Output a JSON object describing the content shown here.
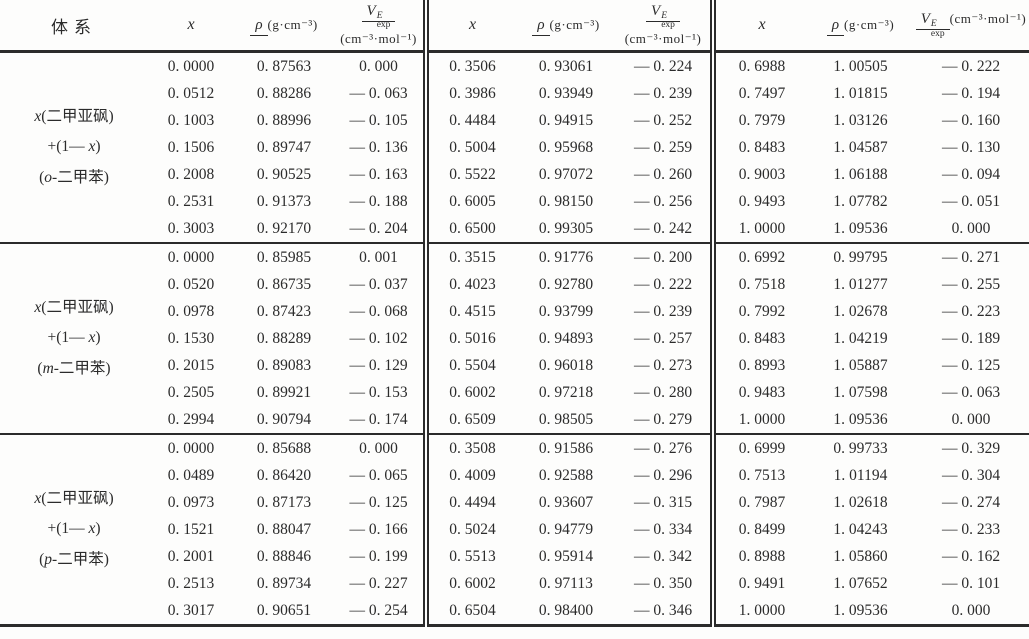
{
  "table": {
    "header": {
      "system": "体系",
      "x": "x",
      "rho": {
        "symbol": "ρ",
        "unit": "(g·cm⁻³)"
      },
      "v": {
        "symbol": "V",
        "sup": "E",
        "sub": "exp",
        "unit": "(cm⁻³·mol⁻¹)"
      }
    },
    "groups": [
      {
        "label_lines": [
          "x(二甲亚砜)",
          "+(1— x)",
          "(o-二甲苯)"
        ],
        "blocks": [
          [
            [
              "0. 0000",
              "0. 87563",
              "0. 000"
            ],
            [
              "0. 0512",
              "0. 88286",
              "— 0. 063"
            ],
            [
              "0. 1003",
              "0. 88996",
              "— 0. 105"
            ],
            [
              "0. 1506",
              "0. 89747",
              "— 0. 136"
            ],
            [
              "0. 2008",
              "0. 90525",
              "— 0. 163"
            ],
            [
              "0. 2531",
              "0. 91373",
              "— 0. 188"
            ],
            [
              "0. 3003",
              "0. 92170",
              "— 0. 204"
            ]
          ],
          [
            [
              "0. 3506",
              "0. 93061",
              "— 0. 224"
            ],
            [
              "0. 3986",
              "0. 93949",
              "— 0. 239"
            ],
            [
              "0. 4484",
              "0. 94915",
              "— 0. 252"
            ],
            [
              "0. 5004",
              "0. 95968",
              "— 0. 259"
            ],
            [
              "0. 5522",
              "0. 97072",
              "— 0. 260"
            ],
            [
              "0. 6005",
              "0. 98150",
              "— 0. 256"
            ],
            [
              "0. 6500",
              "0. 99305",
              "— 0. 242"
            ]
          ],
          [
            [
              "0. 6988",
              "1. 00505",
              "— 0. 222"
            ],
            [
              "0. 7497",
              "1. 01815",
              "— 0. 194"
            ],
            [
              "0. 7979",
              "1. 03126",
              "— 0. 160"
            ],
            [
              "0. 8483",
              "1. 04587",
              "— 0. 130"
            ],
            [
              "0. 9003",
              "1. 06188",
              "— 0. 094"
            ],
            [
              "0. 9493",
              "1. 07782",
              "— 0. 051"
            ],
            [
              "1. 0000",
              "1. 09536",
              "0. 000"
            ]
          ]
        ]
      },
      {
        "label_lines": [
          "x(二甲亚砜)",
          "+(1— x)",
          "(m-二甲苯)"
        ],
        "blocks": [
          [
            [
              "0. 0000",
              "0. 85985",
              "0. 001"
            ],
            [
              "0. 0520",
              "0. 86735",
              "— 0. 037"
            ],
            [
              "0. 0978",
              "0. 87423",
              "— 0. 068"
            ],
            [
              "0. 1530",
              "0. 88289",
              "— 0. 102"
            ],
            [
              "0. 2015",
              "0. 89083",
              "— 0. 129"
            ],
            [
              "0. 2505",
              "0. 89921",
              "— 0. 153"
            ],
            [
              "0. 2994",
              "0. 90794",
              "— 0. 174"
            ]
          ],
          [
            [
              "0. 3515",
              "0. 91776",
              "— 0. 200"
            ],
            [
              "0. 4023",
              "0. 92780",
              "— 0. 222"
            ],
            [
              "0. 4515",
              "0. 93799",
              "— 0. 239"
            ],
            [
              "0. 5016",
              "0. 94893",
              "— 0. 257"
            ],
            [
              "0. 5504",
              "0. 96018",
              "— 0. 273"
            ],
            [
              "0. 6002",
              "0. 97218",
              "— 0. 280"
            ],
            [
              "0. 6509",
              "0. 98505",
              "— 0. 279"
            ]
          ],
          [
            [
              "0. 6992",
              "0. 99795",
              "— 0. 271"
            ],
            [
              "0. 7518",
              "1. 01277",
              "— 0. 255"
            ],
            [
              "0. 7992",
              "1. 02678",
              "— 0. 223"
            ],
            [
              "0. 8483",
              "1. 04219",
              "— 0. 189"
            ],
            [
              "0. 8993",
              "1. 05887",
              "— 0. 125"
            ],
            [
              "0. 9483",
              "1. 07598",
              "— 0. 063"
            ],
            [
              "1. 0000",
              "1. 09536",
              "0. 000"
            ]
          ]
        ]
      },
      {
        "label_lines": [
          "x(二甲亚砜)",
          "+(1— x)",
          "(p-二甲苯)"
        ],
        "blocks": [
          [
            [
              "0. 0000",
              "0. 85688",
              "0. 000"
            ],
            [
              "0. 0489",
              "0. 86420",
              "— 0. 065"
            ],
            [
              "0. 0973",
              "0. 87173",
              "— 0. 125"
            ],
            [
              "0. 1521",
              "0. 88047",
              "— 0. 166"
            ],
            [
              "0. 2001",
              "0. 88846",
              "— 0. 199"
            ],
            [
              "0. 2513",
              "0. 89734",
              "— 0. 227"
            ],
            [
              "0. 3017",
              "0. 90651",
              "— 0. 254"
            ]
          ],
          [
            [
              "0. 3508",
              "0. 91586",
              "— 0. 276"
            ],
            [
              "0. 4009",
              "0. 92588",
              "— 0. 296"
            ],
            [
              "0. 4494",
              "0. 93607",
              "— 0. 315"
            ],
            [
              "0. 5024",
              "0. 94779",
              "— 0. 334"
            ],
            [
              "0. 5513",
              "0. 95914",
              "— 0. 342"
            ],
            [
              "0. 6002",
              "0. 97113",
              "— 0. 350"
            ],
            [
              "0. 6504",
              "0. 98400",
              "— 0. 346"
            ]
          ],
          [
            [
              "0. 6999",
              "0. 99733",
              "— 0. 329"
            ],
            [
              "0. 7513",
              "1. 01194",
              "— 0. 304"
            ],
            [
              "0. 7987",
              "1. 02618",
              "— 0. 274"
            ],
            [
              "0. 8499",
              "1. 04243",
              "— 0. 233"
            ],
            [
              "0. 8988",
              "1. 05860",
              "— 0. 162"
            ],
            [
              "0. 9491",
              "1. 07652",
              "— 0. 101"
            ],
            [
              "1. 0000",
              "1. 09536",
              "0. 000"
            ]
          ]
        ]
      }
    ]
  }
}
